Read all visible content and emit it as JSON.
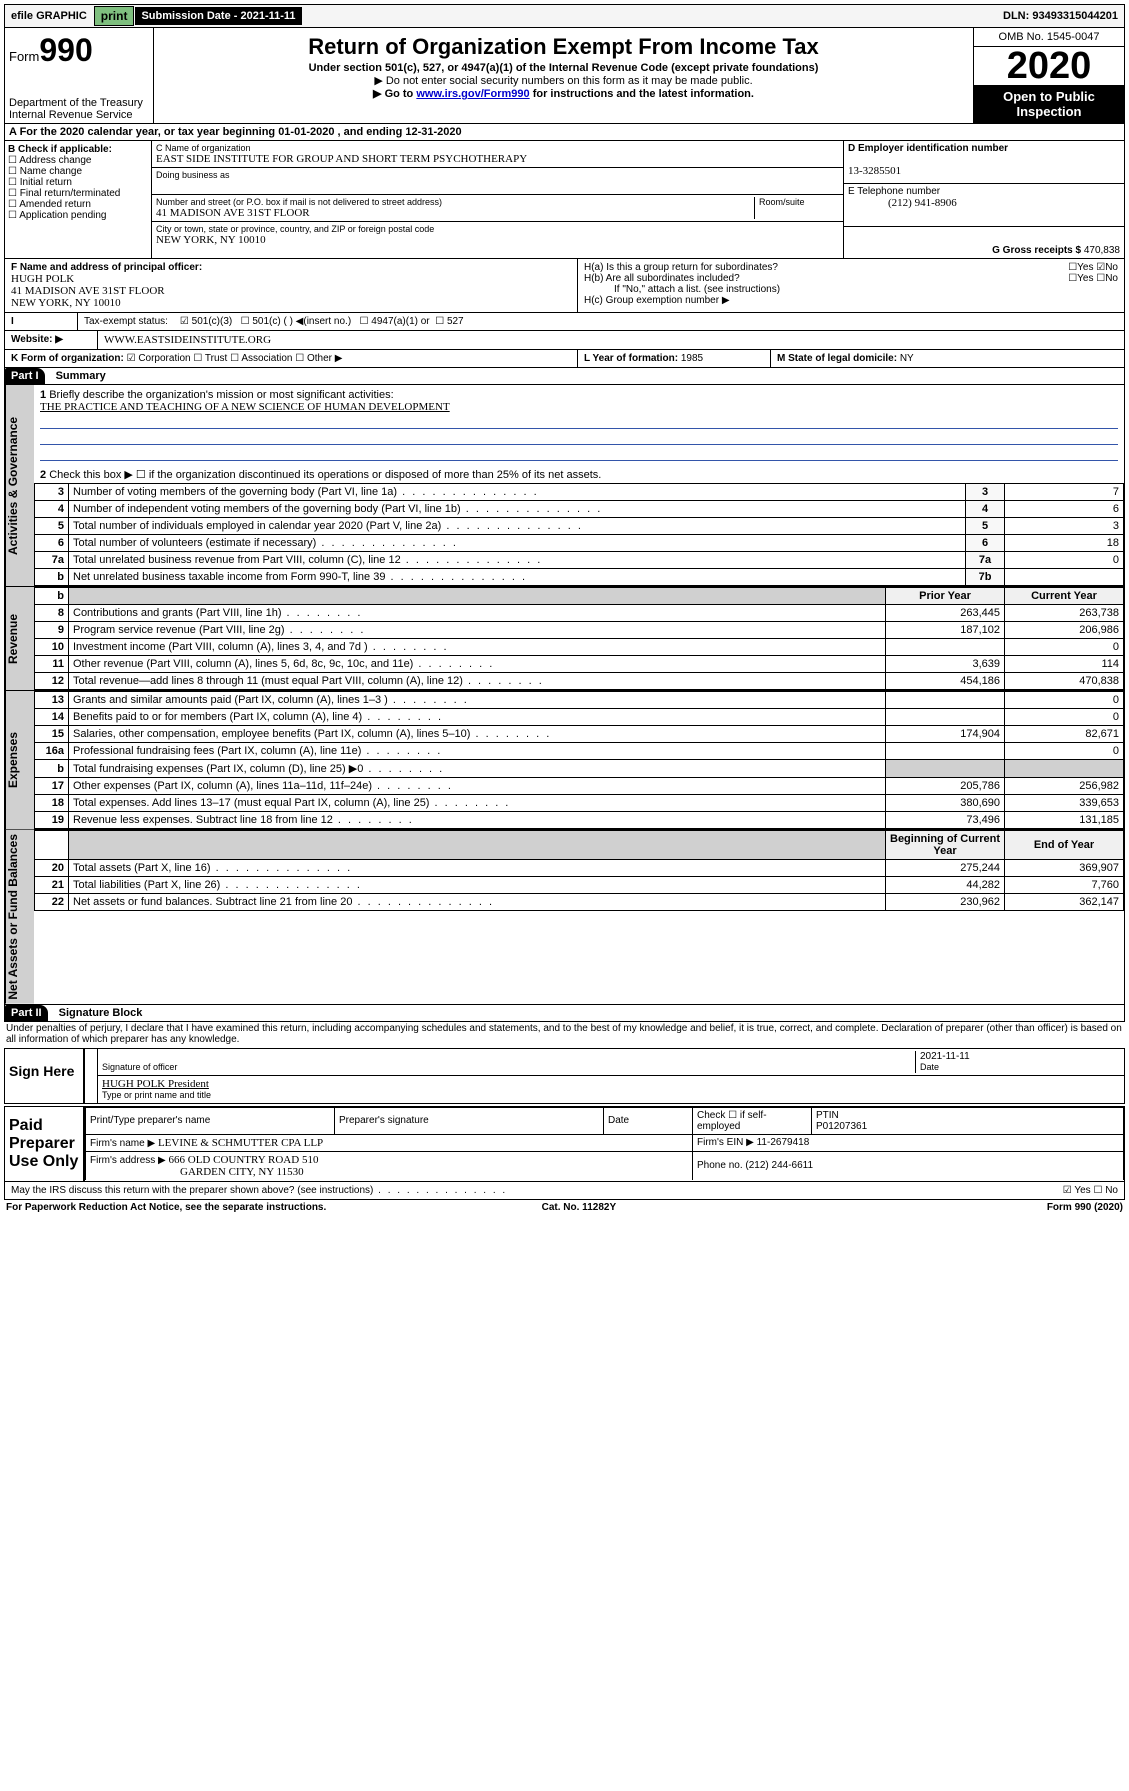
{
  "topbar": {
    "efile": "efile GRAPHIC",
    "print": "print",
    "sub": "Submission Date - 2021-11-11",
    "dln": "DLN: 93493315044201"
  },
  "header": {
    "form_prefix": "Form",
    "form_no": "990",
    "title": "Return of Organization Exempt From Income Tax",
    "subtitle": "Under section 501(c), 527, or 4947(a)(1) of the Internal Revenue Code (except private foundations)",
    "warn": "▶ Do not enter social security numbers on this form as it may be made public.",
    "goto_pre": "▶ Go to ",
    "goto_link": "www.irs.gov/Form990",
    "goto_post": " for instructions and the latest information.",
    "dept": "Department of the Treasury\nInternal Revenue Service",
    "omb": "OMB No. 1545-0047",
    "year": "2020",
    "otp": "Open to Public Inspection"
  },
  "rowA": "A For the 2020 calendar year, or tax year beginning 01-01-2020    , and ending 12-31-2020",
  "colB": {
    "label": "B Check if applicable:",
    "i1": "Address change",
    "i2": "Name change",
    "i3": "Initial return",
    "i4": "Final return/terminated",
    "i5": "Amended return",
    "i6": "Application pending"
  },
  "colC": {
    "name_lbl": "C Name of organization",
    "name": "EAST SIDE INSTITUTE FOR GROUP AND SHORT TERM PSYCHOTHERAPY",
    "dba_lbl": "Doing business as",
    "addr_lbl": "Number and street (or P.O. box if mail is not delivered to street address)",
    "room_lbl": "Room/suite",
    "addr": "41 MADISON AVE 31ST FLOOR",
    "city_lbl": "City or town, state or province, country, and ZIP or foreign postal code",
    "city": "NEW YORK, NY  10010"
  },
  "colD": {
    "ein_lbl": "D Employer identification number",
    "ein": "13-3285501",
    "tel_lbl": "E Telephone number",
    "tel": "(212) 941-8906",
    "gross_lbl": "G Gross receipts $",
    "gross": "470,838"
  },
  "rowF": {
    "label": "F  Name and address of principal officer:",
    "name": "HUGH POLK",
    "addr1": "41 MADISON AVE 31ST FLOOR",
    "addr2": "NEW YORK, NY 10010"
  },
  "rowH": {
    "a": "H(a)  Is this a group return for subordinates?",
    "b": "H(b)  Are all subordinates included?",
    "note": "If \"No,\" attach a list. (see instructions)",
    "c": "H(c)  Group exemption number ▶"
  },
  "rowI": {
    "label": "Tax-exempt status:",
    "o1": "501(c)(3)",
    "o2": "501(c) (  ) ◀(insert no.)",
    "o3": "4947(a)(1) or",
    "o4": "527"
  },
  "rowJ": {
    "label": "Website: ▶",
    "val": "WWW.EASTSIDEINSTITUTE.ORG"
  },
  "rowK": {
    "label": "K Form of organization:",
    "o1": "Corporation",
    "o2": "Trust",
    "o3": "Association",
    "o4": "Other ▶"
  },
  "rowL": {
    "label": "L Year of formation:",
    "val": "1985"
  },
  "rowM": {
    "label": "M State of legal domicile:",
    "val": "NY"
  },
  "part1": {
    "hdr": "Part I",
    "title": "Summary",
    "side_gov": "Activities & Governance",
    "side_rev": "Revenue",
    "side_exp": "Expenses",
    "side_net": "Net Assets or Fund Balances",
    "q1": "Briefly describe the organization's mission or most significant activities:",
    "q1a": "THE PRACTICE AND TEACHING OF A NEW SCIENCE OF HUMAN DEVELOPMENT",
    "q2": "Check this box ▶ ☐  if the organization discontinued its operations or disposed of more than 25% of its net assets.",
    "rows_gov": [
      {
        "n": "3",
        "d": "Number of voting members of the governing body (Part VI, line 1a)",
        "b": "3",
        "v": "7"
      },
      {
        "n": "4",
        "d": "Number of independent voting members of the governing body (Part VI, line 1b)",
        "b": "4",
        "v": "6"
      },
      {
        "n": "5",
        "d": "Total number of individuals employed in calendar year 2020 (Part V, line 2a)",
        "b": "5",
        "v": "3"
      },
      {
        "n": "6",
        "d": "Total number of volunteers (estimate if necessary)",
        "b": "6",
        "v": "18"
      },
      {
        "n": "7a",
        "d": "Total unrelated business revenue from Part VIII, column (C), line 12",
        "b": "7a",
        "v": "0"
      },
      {
        "n": "b",
        "d": "Net unrelated business taxable income from Form 990-T, line 39",
        "b": "7b",
        "v": ""
      }
    ],
    "col_prior": "Prior Year",
    "col_curr": "Current Year",
    "rows_rev": [
      {
        "n": "8",
        "d": "Contributions and grants (Part VIII, line 1h)",
        "p": "263,445",
        "c": "263,738"
      },
      {
        "n": "9",
        "d": "Program service revenue (Part VIII, line 2g)",
        "p": "187,102",
        "c": "206,986"
      },
      {
        "n": "10",
        "d": "Investment income (Part VIII, column (A), lines 3, 4, and 7d )",
        "p": "",
        "c": "0"
      },
      {
        "n": "11",
        "d": "Other revenue (Part VIII, column (A), lines 5, 6d, 8c, 9c, 10c, and 11e)",
        "p": "3,639",
        "c": "114"
      },
      {
        "n": "12",
        "d": "Total revenue—add lines 8 through 11 (must equal Part VIII, column (A), line 12)",
        "p": "454,186",
        "c": "470,838"
      }
    ],
    "rows_exp": [
      {
        "n": "13",
        "d": "Grants and similar amounts paid (Part IX, column (A), lines 1–3 )",
        "p": "",
        "c": "0"
      },
      {
        "n": "14",
        "d": "Benefits paid to or for members (Part IX, column (A), line 4)",
        "p": "",
        "c": "0"
      },
      {
        "n": "15",
        "d": "Salaries, other compensation, employee benefits (Part IX, column (A), lines 5–10)",
        "p": "174,904",
        "c": "82,671"
      },
      {
        "n": "16a",
        "d": "Professional fundraising fees (Part IX, column (A), line 11e)",
        "p": "",
        "c": "0"
      },
      {
        "n": "b",
        "d": "Total fundraising expenses (Part IX, column (D), line 25) ▶0",
        "p": "—shade—",
        "c": "—shade—"
      },
      {
        "n": "17",
        "d": "Other expenses (Part IX, column (A), lines 11a–11d, 11f–24e)",
        "p": "205,786",
        "c": "256,982"
      },
      {
        "n": "18",
        "d": "Total expenses. Add lines 13–17 (must equal Part IX, column (A), line 25)",
        "p": "380,690",
        "c": "339,653"
      },
      {
        "n": "19",
        "d": "Revenue less expenses. Subtract line 18 from line 12",
        "p": "73,496",
        "c": "131,185"
      }
    ],
    "col_beg": "Beginning of Current Year",
    "col_end": "End of Year",
    "rows_net": [
      {
        "n": "20",
        "d": "Total assets (Part X, line 16)",
        "p": "275,244",
        "c": "369,907"
      },
      {
        "n": "21",
        "d": "Total liabilities (Part X, line 26)",
        "p": "44,282",
        "c": "7,760"
      },
      {
        "n": "22",
        "d": "Net assets or fund balances. Subtract line 21 from line 20",
        "p": "230,962",
        "c": "362,147"
      }
    ]
  },
  "part2": {
    "hdr": "Part II",
    "title": "Signature Block",
    "decl": "Under penalties of perjury, I declare that I have examined this return, including accompanying schedules and statements, and to the best of my knowledge and belief, it is true, correct, and complete. Declaration of preparer (other than officer) is based on all information of which preparer has any knowledge."
  },
  "sign": {
    "label": "Sign Here",
    "l1": "Signature of officer",
    "date": "2021-11-11",
    "date_lbl": "Date",
    "name": "HUGH POLK President",
    "l2": "Type or print name and title"
  },
  "prep": {
    "label": "Paid Preparer Use Only",
    "h1": "Print/Type preparer's name",
    "h2": "Preparer's signature",
    "h3": "Date",
    "h4": "Check ☐ if self-employed",
    "h5": "PTIN",
    "ptin": "P01207361",
    "firm_lbl": "Firm's name    ▶",
    "firm": "LEVINE & SCHMUTTER CPA LLP",
    "ein_lbl": "Firm's EIN ▶",
    "ein": "11-2679418",
    "addr_lbl": "Firm's address ▶",
    "addr1": "666 OLD COUNTRY ROAD 510",
    "addr2": "GARDEN CITY, NY  11530",
    "phone_lbl": "Phone no.",
    "phone": "(212) 244-6611"
  },
  "discuss": "May the IRS discuss this return with the preparer shown above? (see instructions)",
  "footer": {
    "l": "For Paperwork Reduction Act Notice, see the separate instructions.",
    "m": "Cat. No. 11282Y",
    "r": "Form 990 (2020)"
  }
}
